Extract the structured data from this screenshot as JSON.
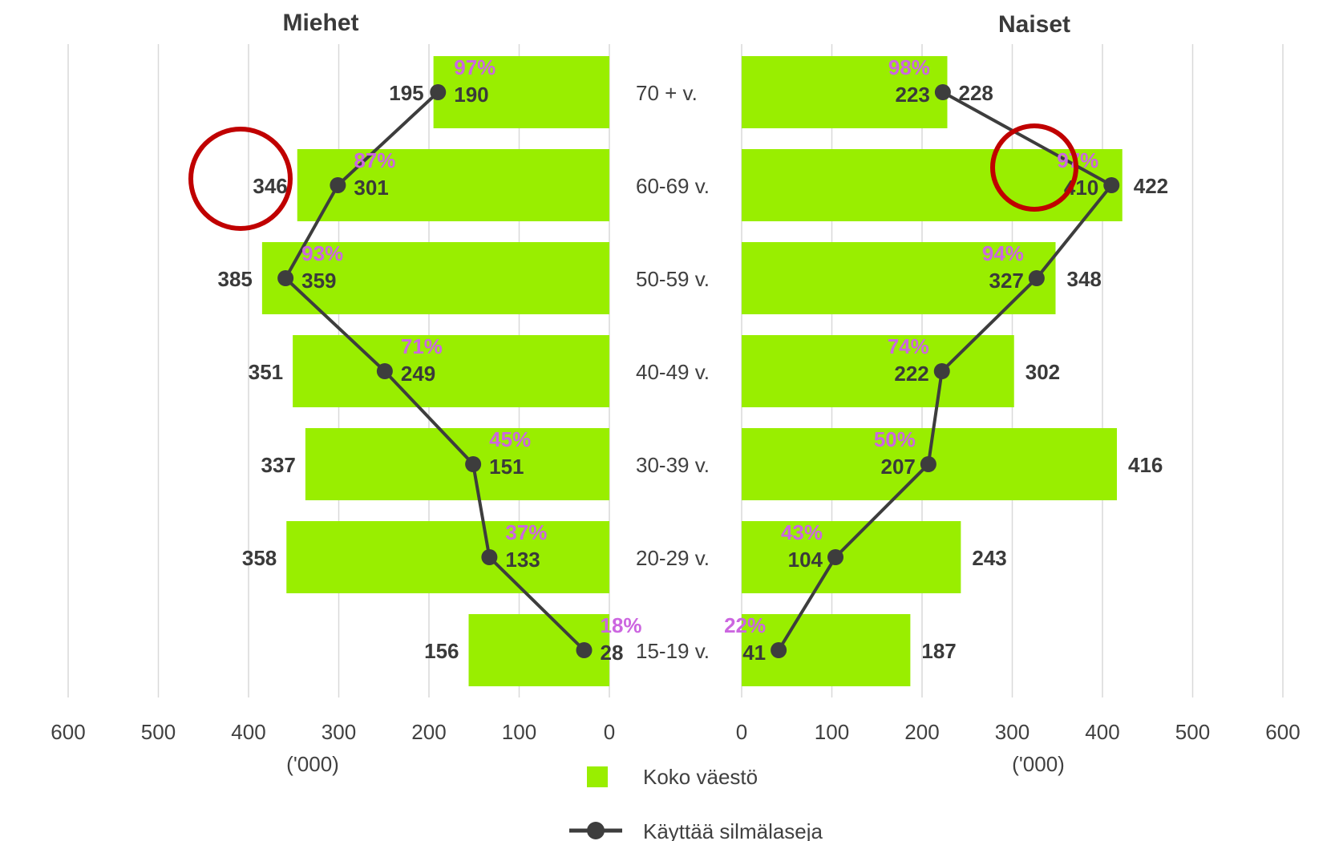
{
  "chart_data": [
    {
      "type": "bar",
      "title": "Miehet",
      "orientation": "horizontal",
      "x_direction": "reversed",
      "xlim": [
        0,
        600
      ],
      "xticks": [
        "600",
        "500",
        "400",
        "300",
        "200",
        "100",
        "0"
      ],
      "unit_label": "('000)",
      "categories": [
        "70 + v.",
        "60-69 v.",
        "50-59 v.",
        "40-49 v.",
        "30-39 v.",
        "20-29 v.",
        "15-19 v."
      ],
      "series": [
        {
          "name": "Koko väestö",
          "type": "bar",
          "values": [
            195,
            346,
            385,
            351,
            337,
            358,
            156
          ],
          "labels": [
            "195",
            "346",
            "385",
            "351",
            "337",
            "358",
            "156"
          ]
        },
        {
          "name": "Käyttää silmälaseja",
          "type": "line",
          "values": [
            190,
            301,
            359,
            249,
            151,
            133,
            28
          ],
          "labels": [
            "190",
            "301",
            "359",
            "249",
            "151",
            "133",
            "28"
          ]
        }
      ],
      "percent_labels": [
        "97%",
        "87%",
        "93%",
        "71%",
        "45%",
        "37%",
        "18%"
      ],
      "highlighted_category": "60-69 v."
    },
    {
      "type": "bar",
      "title": "Naiset",
      "orientation": "horizontal",
      "xlim": [
        0,
        600
      ],
      "xticks": [
        "0",
        "100",
        "200",
        "300",
        "400",
        "500",
        "600"
      ],
      "unit_label": "('000)",
      "categories": [
        "70 + v.",
        "60-69 v.",
        "50-59 v.",
        "40-49 v.",
        "30-39 v.",
        "20-29 v.",
        "15-19 v."
      ],
      "series": [
        {
          "name": "Koko väestö",
          "type": "bar",
          "values": [
            228,
            422,
            348,
            302,
            416,
            243,
            187
          ],
          "labels": [
            "228",
            "422",
            "348",
            "302",
            "416",
            "243",
            "187"
          ]
        },
        {
          "name": "Käyttää silmälaseja",
          "type": "line",
          "values": [
            223,
            410,
            327,
            222,
            207,
            104,
            41
          ],
          "labels": [
            "223",
            "410",
            "327",
            "222",
            "207",
            "104",
            "41"
          ]
        }
      ],
      "percent_labels": [
        "98%",
        "97%",
        "94%",
        "74%",
        "50%",
        "43%",
        "22%"
      ],
      "highlighted_category": "60-69 v."
    }
  ],
  "legend": [
    {
      "label": "Koko väestö",
      "kind": "bar"
    },
    {
      "label": "Käyttää silmälaseja",
      "kind": "line"
    }
  ],
  "colors": {
    "bar": "#99ee00",
    "line": "#3d3d3d",
    "percent": "#cc66e0",
    "highlight": "#c00000",
    "grid": "#d9d9d9",
    "text": "#3a3a3a"
  }
}
